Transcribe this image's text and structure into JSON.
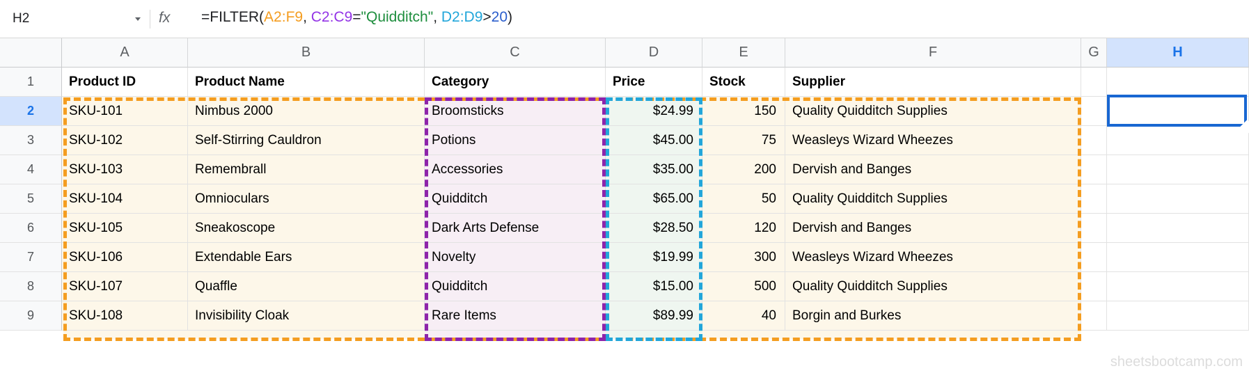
{
  "formula_bar": {
    "name_box_value": "H2",
    "fx_label": "fx",
    "formula_tokens": [
      {
        "text": "=FILTER(",
        "color": "#202124"
      },
      {
        "text": "A2:F9",
        "color": "#f49d20"
      },
      {
        "text": ", ",
        "color": "#202124"
      },
      {
        "text": "C2:C9",
        "color": "#9334e6"
      },
      {
        "text": "=",
        "color": "#202124"
      },
      {
        "text": "\"Quidditch\"",
        "color": "#1e8e3e"
      },
      {
        "text": ", ",
        "color": "#202124"
      },
      {
        "text": "D2:D9",
        "color": "#22a6da"
      },
      {
        "text": ">",
        "color": "#202124"
      },
      {
        "text": "20",
        "color": "#2b5ecc"
      },
      {
        "text": ")",
        "color": "#202124"
      }
    ]
  },
  "sheet": {
    "column_letters": [
      "A",
      "B",
      "C",
      "D",
      "E",
      "F",
      "G",
      "H"
    ],
    "row_numbers": [
      1,
      2,
      3,
      4,
      5,
      6,
      7,
      8,
      9
    ],
    "selected_column_letter": "H",
    "selected_row_number": 2,
    "selected_cell": "H2",
    "header_row": [
      "Product ID",
      "Product Name",
      "Category",
      "Price",
      "Stock",
      "Supplier"
    ],
    "data_rows": [
      [
        "SKU-101",
        "Nimbus 2000",
        "Broomsticks",
        "$24.99",
        "150",
        "Quality Quidditch Supplies"
      ],
      [
        "SKU-102",
        "Self-Stirring Cauldron",
        "Potions",
        "$45.00",
        "75",
        "Weasleys Wizard Wheezes"
      ],
      [
        "SKU-103",
        "Remembrall",
        "Accessories",
        "$35.00",
        "200",
        "Dervish and Banges"
      ],
      [
        "SKU-104",
        "Omnioculars",
        "Quidditch",
        "$65.00",
        "50",
        "Quality Quidditch Supplies"
      ],
      [
        "SKU-105",
        "Sneakoscope",
        "Dark Arts Defense",
        "$28.50",
        "120",
        "Dervish and Banges"
      ],
      [
        "SKU-106",
        "Extendable Ears",
        "Novelty",
        "$19.99",
        "300",
        "Weasleys Wizard Wheezes"
      ],
      [
        "SKU-107",
        "Quaffle",
        "Quidditch",
        "$15.00",
        "500",
        "Quality Quidditch Supplies"
      ],
      [
        "SKU-108",
        "Invisibility Cloak",
        "Rare Items",
        "$89.99",
        "40",
        "Borgin and Burkes"
      ]
    ]
  },
  "highlight_ranges": [
    {
      "range": "A2:F9",
      "border_color": "#f49d20",
      "fill_color": "#fdf7e9"
    },
    {
      "range": "C2:C9",
      "border_color": "#8e24aa",
      "fill_color": "#f7eef5"
    },
    {
      "range": "D2:D9",
      "border_color": "#22a6da",
      "fill_color": "#eff6f0"
    }
  ],
  "selection": {
    "cell": "H2",
    "border_color": "#1967d2"
  },
  "watermark": "sheetsbootcamp.com"
}
